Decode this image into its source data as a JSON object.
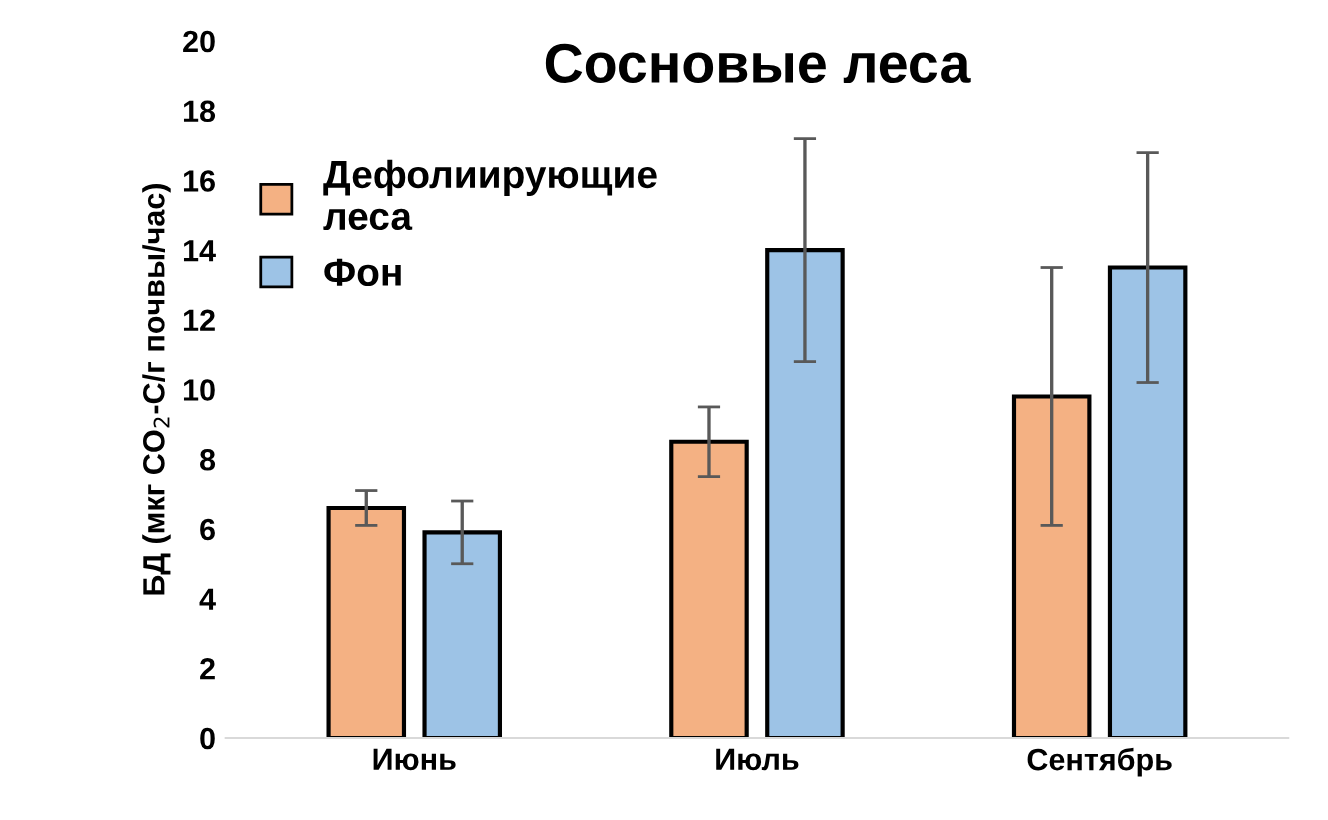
{
  "chart_data": {
    "type": "bar",
    "title": "Сосновые леса",
    "ylabel": "БД (мкг CO$_{2}$-C/г почвы/час)",
    "categories": [
      "Июнь",
      "Июль",
      "Сентябрь"
    ],
    "series": [
      {
        "name": "Дефолиирующие\nлеса",
        "color": "#f4b183",
        "values": [
          6.6,
          8.5,
          9.8
        ],
        "errors": [
          0.5,
          1.0,
          3.7
        ]
      },
      {
        "name": "Фон",
        "color": "#9dc3e6",
        "values": [
          5.9,
          14.0,
          13.5
        ],
        "errors": [
          0.9,
          3.2,
          3.3
        ]
      }
    ],
    "ylim": [
      0,
      20
    ],
    "yticks": [
      0,
      2,
      4,
      6,
      8,
      10,
      12,
      14,
      16,
      18,
      20
    ],
    "grid": false,
    "legend": "top left"
  }
}
